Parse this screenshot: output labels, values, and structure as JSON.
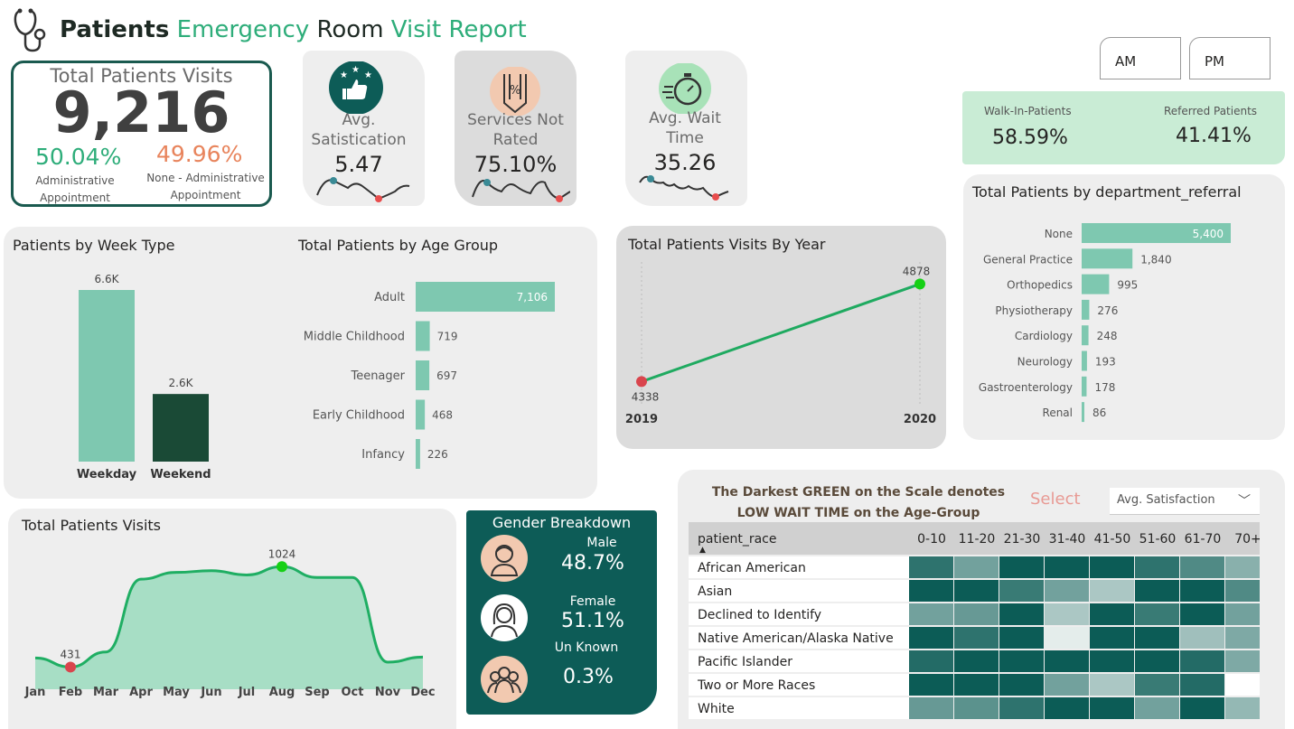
{
  "header": {
    "title_part1": "Patients",
    "title_part2": "Emergency",
    "title_part3": "Room",
    "title_part4": "Visit Report",
    "icon": "stethoscope-icon"
  },
  "total_visits": {
    "title": "Total Patients Visits",
    "value": "9,216",
    "admin_pct": "50.04%",
    "admin_label1": "Administrative",
    "admin_label2": "Appointment",
    "nonadmin_pct": "49.96%",
    "nonadmin_label1": "None - Administrative",
    "nonadmin_label2": "Appointment"
  },
  "kpis": {
    "satisfaction": {
      "title1": "Avg.",
      "title2": "Satistication",
      "value": "5.47",
      "icon": "thumbs-up-stars-icon"
    },
    "not_rated": {
      "title1": "Services Not",
      "title2": "Rated",
      "value": "75.10%",
      "icon": "percent-badge-icon"
    },
    "wait": {
      "title1": "Avg. Wait",
      "title2": "Time",
      "value": "35.26",
      "icon": "stopwatch-icon"
    }
  },
  "time_filter": {
    "am": "AM",
    "pm": "PM"
  },
  "walkin": {
    "walkin_label": "Walk-In-Patients",
    "walkin_value": "58.59%",
    "referred_label": "Referred Patients",
    "referred_value": "41.41%",
    "accent": "#c9ecd5"
  },
  "colors": {
    "accent": "#2ead7a",
    "bar": "#7ec8b0",
    "dark": "#1a4a36",
    "teal": "#0d5c57",
    "red": "#d9454d",
    "green_dot": "#15d015"
  },
  "week_type": {
    "title": "Patients by Week Type",
    "chart_data": {
      "type": "bar",
      "categories": [
        "Weekday",
        "Weekend"
      ],
      "values": [
        6.6,
        2.6
      ],
      "value_labels": [
        "6.6K",
        "2.6K"
      ]
    }
  },
  "age_group": {
    "title": "Total Patients by Age Group",
    "chart_data": {
      "type": "bar",
      "categories": [
        "Adult",
        "Middle Childhood",
        "Teenager",
        "Early Childhood",
        "Infancy"
      ],
      "values": [
        7106,
        719,
        697,
        468,
        226
      ],
      "value_labels": [
        "7,106",
        "719",
        "697",
        "468",
        "226"
      ]
    }
  },
  "by_year": {
    "title": "Total Patients Visits By Year",
    "chart_data": {
      "type": "line",
      "x": [
        "2019",
        "2020"
      ],
      "values": [
        4338,
        4878
      ]
    }
  },
  "department": {
    "title": "Total Patients by department_referral",
    "chart_data": {
      "type": "bar",
      "categories": [
        "None",
        "General Practice",
        "Orthopedics",
        "Physiotherapy",
        "Cardiology",
        "Neurology",
        "Gastroenterology",
        "Renal"
      ],
      "values": [
        5400,
        1840,
        995,
        276,
        248,
        193,
        178,
        86
      ],
      "value_labels": [
        "5,400",
        "1,840",
        "995",
        "276",
        "248",
        "193",
        "178",
        "86"
      ]
    }
  },
  "monthly": {
    "title": "Total Patients Visits",
    "chart_data": {
      "type": "area",
      "x": [
        "Jan",
        "Feb",
        "Mar",
        "Apr",
        "May",
        "Jun",
        "Jul",
        "Aug",
        "Sep",
        "Oct",
        "Nov",
        "Dec"
      ],
      "values": [
        485,
        431,
        520,
        950,
        990,
        1000,
        975,
        1024,
        960,
        960,
        460,
        490
      ],
      "min_label": "431",
      "max_label": "1024"
    }
  },
  "gender": {
    "title": "Gender Breakdown",
    "male_label": "Male",
    "male_value": "48.7%",
    "female_label": "Female",
    "female_value": "51.1%",
    "unknown_label": "Un Known",
    "unknown_value": "0.3%"
  },
  "heatmap": {
    "note_line1": "The Darkest GREEN on the Scale denotes",
    "note_line2": "LOW WAIT TIME on the Age-Group",
    "select_label": "Select",
    "dropdown_value": "Avg. Satisfaction",
    "row_header": "patient_race",
    "columns": [
      "0-10",
      "11-20",
      "21-30",
      "31-40",
      "41-50",
      "51-60",
      "61-70",
      "70+"
    ],
    "rows": [
      "African American",
      "Asian",
      "Declined to Identify",
      "Native American/Alaska Native",
      "Pacific Islander",
      "Two or More Races",
      "White"
    ],
    "levels": [
      [
        0.85,
        0.55,
        1.0,
        1.0,
        1.0,
        0.85,
        0.7,
        0.45
      ],
      [
        1.0,
        1.0,
        0.8,
        0.55,
        0.3,
        1.0,
        1.0,
        0.7
      ],
      [
        0.55,
        0.6,
        1.0,
        0.3,
        1.0,
        0.8,
        1.0,
        0.55
      ],
      [
        1.0,
        0.85,
        1.0,
        0.05,
        1.0,
        1.0,
        0.35,
        0.5
      ],
      [
        0.9,
        1.0,
        1.0,
        1.0,
        1.0,
        1.0,
        0.9,
        0.5
      ],
      [
        1.0,
        1.0,
        1.0,
        0.55,
        0.3,
        0.8,
        0.9,
        0.0
      ],
      [
        0.6,
        0.65,
        0.85,
        1.0,
        1.0,
        0.55,
        1.0,
        0.4
      ]
    ]
  }
}
